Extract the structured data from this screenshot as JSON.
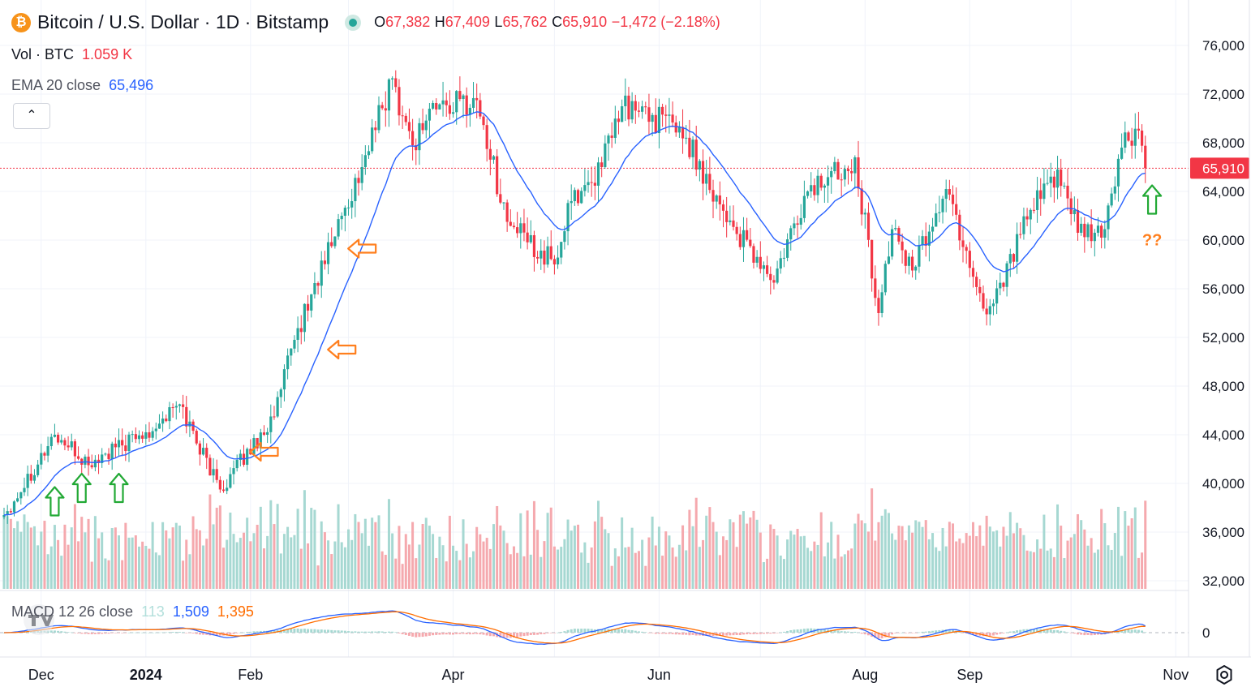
{
  "header": {
    "symbol_title": "Bitcoin / U.S. Dollar · 1D · Bitstamp",
    "coin_glyph": "₿",
    "ohlc": {
      "o_label": "O",
      "o_value": "67,382",
      "h_label": "H",
      "h_value": "67,409",
      "l_label": "L",
      "l_value": "65,762",
      "c_label": "C",
      "c_value": "65,910",
      "change": "−1,472 (−2.18%)"
    },
    "volume": {
      "label": "Vol · BTC",
      "value": "1.059 K"
    },
    "ema": {
      "label": "EMA 20 close",
      "value": "65,496"
    },
    "collapse_glyph": "⌃"
  },
  "macd_legend": {
    "label": "MACD 12 26 close",
    "hist": "113",
    "macd": "1,509",
    "signal": "1,395"
  },
  "colors": {
    "up": "#26a69a",
    "down": "#f23645",
    "up_volume": "#a6d8d2",
    "down_volume": "#f5a9ae",
    "ema": "#2962ff",
    "signal": "#ff6d00",
    "last_price_bg": "#f23645",
    "annotation_green": "#22a935",
    "annotation_orange": "#ff7f1e"
  },
  "price_axis": {
    "ticks": [
      "76,000",
      "72,000",
      "68,000",
      "64,000",
      "60,000",
      "56,000",
      "52,000",
      "48,000",
      "44,000",
      "40,000",
      "36,000",
      "32,000"
    ],
    "last_price_label": "65,910"
  },
  "macd_axis": {
    "zero_label": "0"
  },
  "time_axis": {
    "labels": [
      "Dec",
      "2024",
      "Feb",
      "Apr",
      "Jun",
      "Aug",
      "Sep",
      "Nov"
    ]
  },
  "annotations": {
    "question": "??"
  },
  "chart_data": {
    "type": "candlestick",
    "series_name": "Bitcoin / U.S. Dollar",
    "period": "1D",
    "ylim": [
      32000,
      76000
    ],
    "anchor_closes": [
      {
        "date": "2023-11-20",
        "close": 37400
      },
      {
        "date": "2023-12-05",
        "close": 44000
      },
      {
        "date": "2023-12-15",
        "close": 41500
      },
      {
        "date": "2024-01-01",
        "close": 44200
      },
      {
        "date": "2024-01-11",
        "close": 46500
      },
      {
        "date": "2024-01-23",
        "close": 39500
      },
      {
        "date": "2024-02-08",
        "close": 45500
      },
      {
        "date": "2024-02-14",
        "close": 51800
      },
      {
        "date": "2024-02-28",
        "close": 62000
      },
      {
        "date": "2024-03-05",
        "close": 66000
      },
      {
        "date": "2024-03-14",
        "close": 73300
      },
      {
        "date": "2024-03-20",
        "close": 67800
      },
      {
        "date": "2024-03-25",
        "close": 70800
      },
      {
        "date": "2024-04-08",
        "close": 71500
      },
      {
        "date": "2024-04-17",
        "close": 61500
      },
      {
        "date": "2024-05-01",
        "close": 58000
      },
      {
        "date": "2024-05-06",
        "close": 63200
      },
      {
        "date": "2024-05-15",
        "close": 66000
      },
      {
        "date": "2024-05-21",
        "close": 71000
      },
      {
        "date": "2024-06-07",
        "close": 69300
      },
      {
        "date": "2024-06-24",
        "close": 60500
      },
      {
        "date": "2024-07-05",
        "close": 56500
      },
      {
        "date": "2024-07-15",
        "close": 64000
      },
      {
        "date": "2024-07-29",
        "close": 66800
      },
      {
        "date": "2024-08-05",
        "close": 54000
      },
      {
        "date": "2024-08-09",
        "close": 60900
      },
      {
        "date": "2024-08-15",
        "close": 57500
      },
      {
        "date": "2024-08-25",
        "close": 64200
      },
      {
        "date": "2024-09-06",
        "close": 53900
      },
      {
        "date": "2024-09-18",
        "close": 61700
      },
      {
        "date": "2024-09-27",
        "close": 65800
      },
      {
        "date": "2024-10-03",
        "close": 60600
      },
      {
        "date": "2024-10-10",
        "close": 60200
      },
      {
        "date": "2024-10-16",
        "close": 67600
      },
      {
        "date": "2024-10-21",
        "close": 69000
      },
      {
        "date": "2024-10-23",
        "close": 65910
      }
    ],
    "last_close": 65910,
    "ema_20_last": 65496,
    "macd": {
      "fast": 12,
      "slow": 26,
      "histogram": 113,
      "macd": 1509,
      "signal": 1395
    },
    "volume_last_btc": "1.059 K",
    "markers": [
      {
        "type": "arrow-up",
        "color": "green",
        "date": "2023-12-05",
        "value": 38500
      },
      {
        "type": "arrow-up",
        "color": "green",
        "date": "2023-12-13",
        "value": 39600
      },
      {
        "type": "arrow-up",
        "color": "green",
        "date": "2023-12-24",
        "value": 39600
      },
      {
        "type": "arrow-left",
        "color": "orange",
        "date": "2024-02-05",
        "value": 42600
      },
      {
        "type": "arrow-left",
        "color": "orange",
        "date": "2024-02-28",
        "value": 51000
      },
      {
        "type": "arrow-left",
        "color": "orange",
        "date": "2024-03-05",
        "value": 59300
      },
      {
        "type": "arrow-up",
        "color": "green",
        "date": "2024-10-25",
        "value": 63300
      }
    ]
  }
}
